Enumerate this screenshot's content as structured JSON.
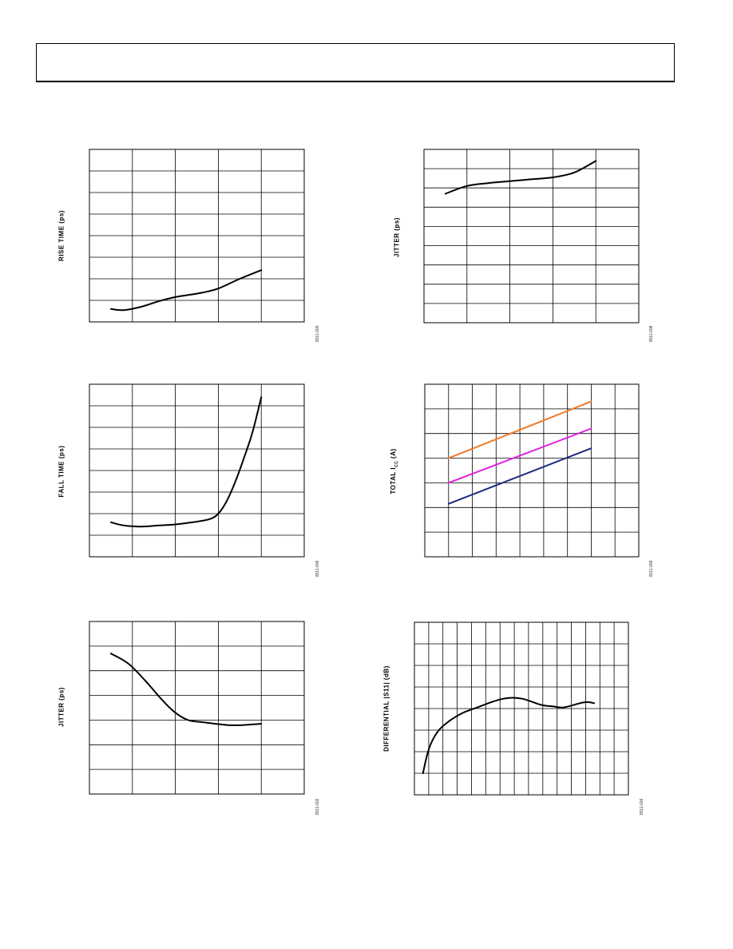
{
  "charts": [
    {
      "id": "c1",
      "ylabel": "RISE TIME (ps)",
      "figure_id": "0511-005",
      "chart_data": {
        "type": "line",
        "grid_cols": 5,
        "grid_rows": 8,
        "xlim": [
          0,
          5
        ],
        "ylim": [
          0,
          8
        ],
        "series": [
          {
            "color": "#000000",
            "x": [
              0.5,
              0.8,
              1.2,
              1.6,
              2.0,
              2.6,
              3.0,
              3.5,
              4.0
            ],
            "y": [
              0.6,
              0.55,
              0.7,
              0.95,
              1.15,
              1.35,
              1.55,
              2.0,
              2.4
            ]
          }
        ]
      }
    },
    {
      "id": "c2",
      "ylabel": "JITTER (ps)",
      "figure_id": "0511-008",
      "chart_data": {
        "type": "line",
        "grid_cols": 5,
        "grid_rows": 9,
        "xlim": [
          0,
          5
        ],
        "ylim": [
          0,
          9
        ],
        "series": [
          {
            "color": "#000000",
            "x": [
              0.5,
              1.0,
              1.5,
              2.0,
              2.5,
              3.0,
              3.5,
              4.0
            ],
            "y": [
              6.7,
              7.1,
              7.25,
              7.35,
              7.45,
              7.55,
              7.8,
              8.4
            ]
          }
        ]
      }
    },
    {
      "id": "c3",
      "ylabel": "FALL TIME (ps)",
      "figure_id": "0511-006",
      "chart_data": {
        "type": "line",
        "grid_cols": 5,
        "grid_rows": 8,
        "xlim": [
          0,
          5
        ],
        "ylim": [
          0,
          8
        ],
        "series": [
          {
            "color": "#000000",
            "x": [
              0.5,
              0.8,
              1.2,
              1.6,
              2.0,
              2.4,
              2.8,
              3.0,
              3.2,
              3.4,
              3.6,
              3.8,
              4.0
            ],
            "y": [
              1.6,
              1.45,
              1.4,
              1.45,
              1.5,
              1.6,
              1.75,
              2.0,
              2.6,
              3.5,
              4.6,
              5.8,
              7.4
            ]
          }
        ]
      }
    },
    {
      "id": "c4",
      "ylabel": "TOTAL I",
      "ylabel_sub": "CC",
      "ylabel_tail": " (A)",
      "figure_id": "0511-009",
      "chart_data": {
        "type": "line",
        "grid_cols": 9,
        "grid_rows": 7,
        "xlim": [
          0,
          9
        ],
        "ylim": [
          0,
          7
        ],
        "series": [
          {
            "color": "#f07a28",
            "x": [
              1,
              7
            ],
            "y": [
              4.0,
              6.3
            ]
          },
          {
            "color": "#e020e0",
            "x": [
              1,
              7
            ],
            "y": [
              3.0,
              5.2
            ]
          },
          {
            "color": "#1c2a7c",
            "x": [
              1,
              7
            ],
            "y": [
              2.15,
              4.4
            ]
          }
        ]
      }
    },
    {
      "id": "c5",
      "ylabel": "JITTER (ps)",
      "figure_id": "0511-002",
      "chart_data": {
        "type": "line",
        "grid_cols": 5,
        "grid_rows": 7,
        "xlim": [
          0,
          5
        ],
        "ylim": [
          0,
          7
        ],
        "series": [
          {
            "color": "#000000",
            "x": [
              0.5,
              0.9,
              1.3,
              1.7,
              2.0,
              2.3,
              2.7,
              3.2,
              3.6,
              4.0
            ],
            "y": [
              5.7,
              5.3,
              4.6,
              3.8,
              3.3,
              3.0,
              2.9,
              2.8,
              2.8,
              2.85
            ]
          }
        ]
      }
    },
    {
      "id": "c6",
      "ylabel": "DIFFERENTIAL |S11| (dB)",
      "figure_id": "0511-026",
      "chart_data": {
        "type": "line",
        "grid_cols": 15,
        "grid_rows": 8,
        "xlim": [
          0,
          15
        ],
        "ylim": [
          0,
          8
        ],
        "series": [
          {
            "color": "#000000",
            "x": [
              0.6,
              1.0,
              1.6,
              2.4,
              3.4,
              4.4,
              5.4,
              6.2,
              6.9,
              7.6,
              8.3,
              9.0,
              9.7,
              10.4,
              11.1,
              11.6,
              12.1,
              12.6
            ],
            "y": [
              1.0,
              2.1,
              2.9,
              3.4,
              3.8,
              4.05,
              4.3,
              4.45,
              4.5,
              4.45,
              4.3,
              4.15,
              4.1,
              4.05,
              4.15,
              4.25,
              4.3,
              4.25
            ]
          }
        ]
      }
    }
  ]
}
